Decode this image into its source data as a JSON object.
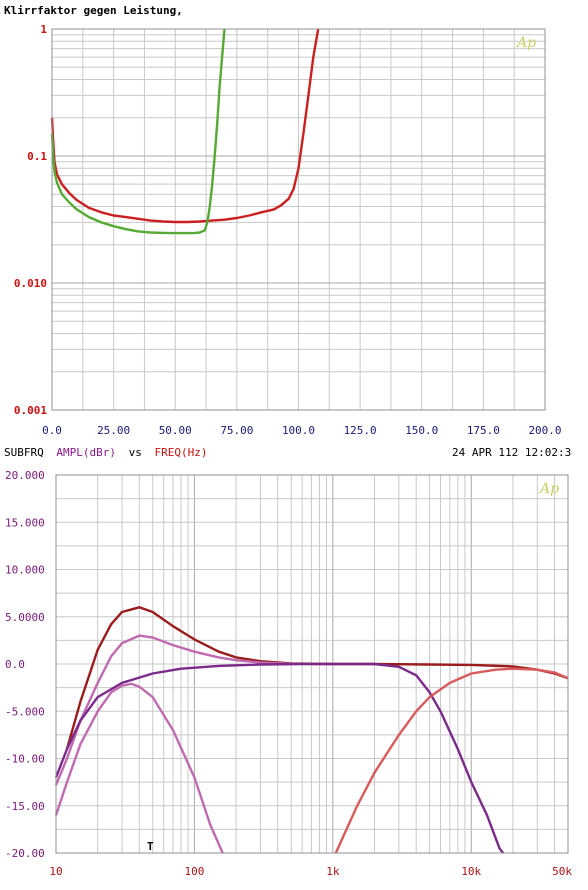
{
  "chart_data": [
    {
      "type": "line",
      "title": "Klirrfaktor gegen Leistung,",
      "logo": "Ap",
      "x_scale": "linear",
      "y_scale": "log",
      "xlim": [
        0,
        200
      ],
      "ylim": [
        0.001,
        1
      ],
      "grid": true,
      "x_ticks": [
        0,
        25,
        50,
        75,
        100,
        125,
        150,
        175,
        200
      ],
      "x_tick_labels": [
        "0.0",
        "25.00",
        "50.00",
        "75.00",
        "100.0",
        "125.0",
        "150.0",
        "175.0",
        "200.0"
      ],
      "y_ticks": [
        1,
        0.1,
        0.01,
        0.001
      ],
      "y_tick_labels": [
        "1",
        "0.1",
        "0.010",
        "0.001"
      ],
      "colors": {
        "axis_x_labels": "#1a1a7a",
        "axis_y_labels": "#cc1111",
        "title": "#000000",
        "logo": "#cccc66"
      },
      "series": [
        {
          "color": "#cc1f1f",
          "points": [
            [
              0,
              0.2
            ],
            [
              0.5,
              0.13
            ],
            [
              1,
              0.09
            ],
            [
              2,
              0.072
            ],
            [
              4,
              0.06
            ],
            [
              7,
              0.051
            ],
            [
              10,
              0.045
            ],
            [
              15,
              0.039
            ],
            [
              20,
              0.036
            ],
            [
              25,
              0.034
            ],
            [
              30,
              0.033
            ],
            [
              35,
              0.032
            ],
            [
              40,
              0.031
            ],
            [
              45,
              0.0305
            ],
            [
              50,
              0.0302
            ],
            [
              55,
              0.0302
            ],
            [
              60,
              0.0305
            ],
            [
              65,
              0.031
            ],
            [
              70,
              0.0315
            ],
            [
              75,
              0.0325
            ],
            [
              80,
              0.034
            ],
            [
              85,
              0.036
            ],
            [
              90,
              0.038
            ],
            [
              93,
              0.041
            ],
            [
              96,
              0.046
            ],
            [
              98,
              0.055
            ],
            [
              100,
              0.08
            ],
            [
              102,
              0.15
            ],
            [
              104,
              0.3
            ],
            [
              106,
              0.6
            ],
            [
              108,
              1.0
            ]
          ]
        },
        {
          "color": "#55aa33",
          "points": [
            [
              0,
              0.15
            ],
            [
              0.5,
              0.1
            ],
            [
              1,
              0.075
            ],
            [
              2,
              0.062
            ],
            [
              4,
              0.05
            ],
            [
              7,
              0.043
            ],
            [
              10,
              0.038
            ],
            [
              15,
              0.033
            ],
            [
              20,
              0.03
            ],
            [
              25,
              0.028
            ],
            [
              30,
              0.0265
            ],
            [
              35,
              0.0255
            ],
            [
              40,
              0.025
            ],
            [
              45,
              0.0248
            ],
            [
              50,
              0.0247
            ],
            [
              55,
              0.0247
            ],
            [
              58,
              0.0248
            ],
            [
              60,
              0.025
            ],
            [
              62,
              0.026
            ],
            [
              63,
              0.03
            ],
            [
              64,
              0.04
            ],
            [
              65,
              0.06
            ],
            [
              66,
              0.1
            ],
            [
              67,
              0.18
            ],
            [
              68,
              0.35
            ],
            [
              69,
              0.6
            ],
            [
              70,
              1.0
            ]
          ]
        }
      ]
    },
    {
      "type": "line",
      "header": {
        "left_prefix": "SUBFRQ",
        "ampl_label": "AMPL(dBr)",
        "vs": "vs",
        "freq_label": "FREQ(Hz)",
        "datetime": "24 APR 112 12:02:3"
      },
      "logo": "Ap",
      "x_scale": "log",
      "y_scale": "linear",
      "xlim": [
        10,
        50000
      ],
      "ylim": [
        -20,
        20
      ],
      "grid": true,
      "x_ticks": [
        10,
        100,
        1000,
        10000,
        50000
      ],
      "x_tick_labels": [
        "10",
        "100",
        "1k",
        "10k",
        "50k"
      ],
      "y_ticks": [
        20,
        15,
        10,
        5,
        0,
        -5,
        -10,
        -15,
        -20
      ],
      "y_tick_labels": [
        "20.000",
        "15.000",
        "10.000",
        "5.0000",
        "0.0",
        "-5.000",
        "-10.00",
        "-15.00",
        "-20.00"
      ],
      "cursor_label": "T",
      "colors": {
        "axis_labels": "#7a1a7a",
        "x_tick_labels": "#aa1111",
        "ampl_label": "#8b1a8b",
        "freq_label": "#cc1111",
        "logo": "#cccc66"
      },
      "series": [
        {
          "color": "#9b1c1c",
          "points": [
            [
              12,
              -9
            ],
            [
              15,
              -4
            ],
            [
              20,
              1.5
            ],
            [
              25,
              4.2
            ],
            [
              30,
              5.5
            ],
            [
              40,
              6.0
            ],
            [
              50,
              5.5
            ],
            [
              70,
              4.0
            ],
            [
              100,
              2.6
            ],
            [
              150,
              1.3
            ],
            [
              200,
              0.7
            ],
            [
              300,
              0.3
            ],
            [
              500,
              0.05
            ],
            [
              1000,
              0
            ],
            [
              2000,
              0
            ],
            [
              5000,
              -0.05
            ],
            [
              10000,
              -0.1
            ],
            [
              20000,
              -0.25
            ],
            [
              30000,
              -0.6
            ],
            [
              40000,
              -1.0
            ],
            [
              50000,
              -1.5
            ]
          ]
        },
        {
          "color": "#c06ab0",
          "points": [
            [
              10,
              -12.8
            ],
            [
              12,
              -10
            ],
            [
              15,
              -6
            ],
            [
              20,
              -2
            ],
            [
              25,
              0.8
            ],
            [
              30,
              2.2
            ],
            [
              40,
              3.0
            ],
            [
              50,
              2.8
            ],
            [
              70,
              2.0
            ],
            [
              100,
              1.3
            ],
            [
              150,
              0.7
            ],
            [
              200,
              0.4
            ],
            [
              300,
              0.15
            ],
            [
              500,
              0.02
            ],
            [
              1000,
              0
            ],
            [
              2000,
              0
            ]
          ]
        },
        {
          "color": "#c06ab0",
          "points": [
            [
              10,
              -16
            ],
            [
              12,
              -12.5
            ],
            [
              15,
              -8.5
            ],
            [
              20,
              -5
            ],
            [
              25,
              -3
            ],
            [
              30,
              -2.3
            ],
            [
              35,
              -2.1
            ],
            [
              40,
              -2.4
            ],
            [
              50,
              -3.5
            ],
            [
              70,
              -7
            ],
            [
              100,
              -12
            ],
            [
              130,
              -17
            ],
            [
              160,
              -20
            ]
          ]
        },
        {
          "color": "#7b2a8a",
          "points": [
            [
              10,
              -12
            ],
            [
              12,
              -9
            ],
            [
              15,
              -6
            ],
            [
              20,
              -3.5
            ],
            [
              30,
              -2
            ],
            [
              50,
              -1
            ],
            [
              80,
              -0.5
            ],
            [
              150,
              -0.2
            ],
            [
              300,
              -0.05
            ],
            [
              600,
              0
            ],
            [
              1000,
              0
            ],
            [
              2000,
              0
            ],
            [
              3000,
              -0.3
            ],
            [
              4000,
              -1.2
            ],
            [
              5000,
              -3
            ],
            [
              6000,
              -5
            ],
            [
              8000,
              -9
            ],
            [
              10000,
              -12.5
            ],
            [
              13000,
              -16
            ],
            [
              16000,
              -19.5
            ],
            [
              17000,
              -20
            ]
          ]
        },
        {
          "color": "#d85a5a",
          "points": [
            [
              1050,
              -20
            ],
            [
              1500,
              -15
            ],
            [
              2000,
              -11.5
            ],
            [
              3000,
              -7.5
            ],
            [
              4000,
              -5
            ],
            [
              5000,
              -3.5
            ],
            [
              7000,
              -2
            ],
            [
              10000,
              -1
            ],
            [
              15000,
              -0.6
            ],
            [
              20000,
              -0.5
            ],
            [
              30000,
              -0.6
            ],
            [
              40000,
              -0.9
            ],
            [
              50000,
              -1.5
            ]
          ]
        }
      ]
    }
  ]
}
